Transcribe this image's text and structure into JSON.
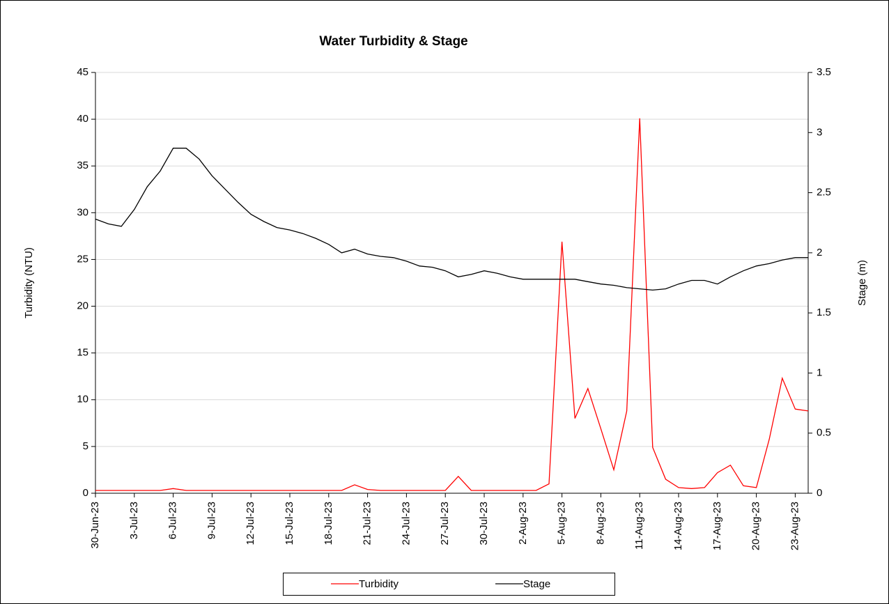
{
  "chart_data": {
    "type": "line",
    "title": "Water Turbidity & Stage",
    "y_label": "Turbidity (NTU)",
    "y2_label": "Stage (m)",
    "x": [
      "2023-06-30",
      "2023-07-01",
      "2023-07-02",
      "2023-07-03",
      "2023-07-04",
      "2023-07-05",
      "2023-07-06",
      "2023-07-07",
      "2023-07-08",
      "2023-07-09",
      "2023-07-10",
      "2023-07-11",
      "2023-07-12",
      "2023-07-13",
      "2023-07-14",
      "2023-07-15",
      "2023-07-16",
      "2023-07-17",
      "2023-07-18",
      "2023-07-19",
      "2023-07-20",
      "2023-07-21",
      "2023-07-22",
      "2023-07-23",
      "2023-07-24",
      "2023-07-25",
      "2023-07-26",
      "2023-07-27",
      "2023-07-28",
      "2023-07-29",
      "2023-07-30",
      "2023-07-31",
      "2023-08-01",
      "2023-08-02",
      "2023-08-03",
      "2023-08-04",
      "2023-08-05",
      "2023-08-06",
      "2023-08-07",
      "2023-08-08",
      "2023-08-09",
      "2023-08-10",
      "2023-08-11",
      "2023-08-12",
      "2023-08-13",
      "2023-08-14",
      "2023-08-15",
      "2023-08-16",
      "2023-08-17",
      "2023-08-18",
      "2023-08-19",
      "2023-08-20",
      "2023-08-21",
      "2023-08-22",
      "2023-08-23",
      "2023-08-24"
    ],
    "series": [
      {
        "name": "Turbidity",
        "color": "#ff0000",
        "axis": "y",
        "values": [
          0.3,
          0.3,
          0.3,
          0.3,
          0.3,
          0.3,
          0.5,
          0.3,
          0.3,
          0.3,
          0.3,
          0.3,
          0.3,
          0.3,
          0.3,
          0.3,
          0.3,
          0.3,
          0.3,
          0.3,
          0.9,
          0.4,
          0.3,
          0.3,
          0.3,
          0.3,
          0.3,
          0.3,
          1.8,
          0.3,
          0.3,
          0.3,
          0.3,
          0.3,
          0.3,
          1.0,
          26.9,
          8.0,
          11.2,
          6.9,
          2.5,
          8.8,
          40.1,
          4.9,
          1.5,
          0.6,
          0.5,
          0.6,
          2.2,
          3.0,
          0.8,
          0.6,
          5.8,
          12.3,
          9.0,
          8.8
        ]
      },
      {
        "name": "Stage",
        "color": "#000000",
        "axis": "y2",
        "values": [
          2.28,
          2.24,
          2.22,
          2.36,
          2.55,
          2.68,
          2.87,
          2.87,
          2.78,
          2.64,
          2.53,
          2.42,
          2.32,
          2.26,
          2.21,
          2.19,
          2.16,
          2.12,
          2.07,
          2.0,
          2.03,
          1.99,
          1.97,
          1.96,
          1.93,
          1.89,
          1.88,
          1.85,
          1.8,
          1.82,
          1.85,
          1.83,
          1.8,
          1.78,
          1.78,
          1.78,
          1.78,
          1.78,
          1.76,
          1.74,
          1.73,
          1.71,
          1.7,
          1.69,
          1.7,
          1.74,
          1.77,
          1.77,
          1.74,
          1.8,
          1.85,
          1.89,
          1.91,
          1.94,
          1.96,
          1.96
        ]
      }
    ],
    "xlim": [
      "2023-06-30",
      "2023-08-24"
    ],
    "xticks": [
      {
        "value": "2023-06-30",
        "label": "30-Jun-23"
      },
      {
        "value": "2023-07-03",
        "label": "3-Jul-23"
      },
      {
        "value": "2023-07-06",
        "label": "6-Jul-23"
      },
      {
        "value": "2023-07-09",
        "label": "9-Jul-23"
      },
      {
        "value": "2023-07-12",
        "label": "12-Jul-23"
      },
      {
        "value": "2023-07-15",
        "label": "15-Jul-23"
      },
      {
        "value": "2023-07-18",
        "label": "18-Jul-23"
      },
      {
        "value": "2023-07-21",
        "label": "21-Jul-23"
      },
      {
        "value": "2023-07-24",
        "label": "24-Jul-23"
      },
      {
        "value": "2023-07-27",
        "label": "27-Jul-23"
      },
      {
        "value": "2023-07-30",
        "label": "30-Jul-23"
      },
      {
        "value": "2023-08-02",
        "label": "2-Aug-23"
      },
      {
        "value": "2023-08-05",
        "label": "5-Aug-23"
      },
      {
        "value": "2023-08-08",
        "label": "8-Aug-23"
      },
      {
        "value": "2023-08-11",
        "label": "11-Aug-23"
      },
      {
        "value": "2023-08-14",
        "label": "14-Aug-23"
      },
      {
        "value": "2023-08-17",
        "label": "17-Aug-23"
      },
      {
        "value": "2023-08-20",
        "label": "20-Aug-23"
      },
      {
        "value": "2023-08-23",
        "label": "23-Aug-23"
      }
    ],
    "ylim": [
      0,
      45
    ],
    "yticks": [
      0,
      5,
      10,
      15,
      20,
      25,
      30,
      35,
      40,
      45
    ],
    "y2lim": [
      0,
      3.5
    ],
    "y2ticks": [
      0,
      0.5,
      1,
      1.5,
      2,
      2.5,
      3,
      3.5
    ],
    "grid": true,
    "legend": "bottom"
  }
}
